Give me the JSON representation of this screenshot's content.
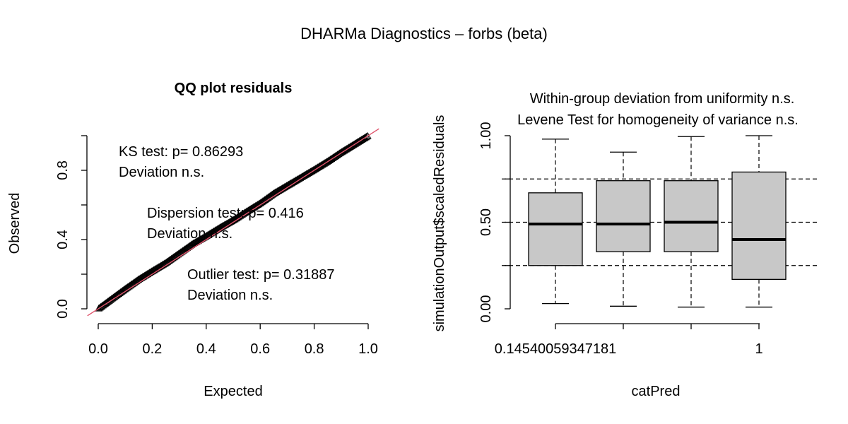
{
  "figure": {
    "title": "DHARMa Diagnostics – forbs (beta)"
  },
  "chart_data": [
    {
      "type": "scatter",
      "title": "QQ plot residuals",
      "xlabel": "Expected",
      "ylabel": "Observed",
      "xlim": [
        -0.04,
        1.04
      ],
      "ylim": [
        -0.04,
        1.04
      ],
      "xticks": [
        "0.0",
        "0.2",
        "0.4",
        "0.6",
        "0.8",
        "1.0"
      ],
      "yticks": [
        "0.0",
        "0.4",
        "0.8"
      ],
      "xtick_values": [
        0,
        0.2,
        0.4,
        0.6,
        0.8,
        1.0
      ],
      "ytick_values": [
        0,
        0.4,
        0.8
      ],
      "grid": false,
      "reference_line": {
        "x": [
          -0.04,
          1.04
        ],
        "y": [
          -0.04,
          1.04
        ],
        "color": "#DF536B"
      },
      "qq_deviation": {
        "x": [
          0,
          0.05,
          0.1,
          0.15,
          0.2,
          0.25,
          0.3,
          0.35,
          0.4,
          0.45,
          0.5,
          0.55,
          0.6,
          0.65,
          0.7,
          0.75,
          0.8,
          0.85,
          0.9,
          0.95,
          1.0
        ],
        "y": [
          0,
          0.008,
          0.015,
          0.02,
          0.018,
          0.015,
          0.02,
          0.025,
          0.02,
          0.018,
          0.012,
          0.012,
          0.01,
          0.016,
          0.012,
          0.008,
          0.004,
          0.002,
          0.004,
          0.002,
          0
        ]
      },
      "n_points": 260,
      "point_marker": "open-triangle",
      "annotations": {
        "ks": {
          "line1": "KS test: p= 0.86293",
          "line2": "Deviation  n.s."
        },
        "dispersion": {
          "line1": "Dispersion test: p= 0.416",
          "line2": "Deviation  n.s."
        },
        "outlier": {
          "line1": "Outlier test: p= 0.31887",
          "line2": "Deviation  n.s."
        }
      }
    },
    {
      "type": "box",
      "title_line1": "Within-group deviation from uniformity n.s.",
      "title_line2": "Levene Test for homogeneity of variance n.s.",
      "xlabel": "catPred",
      "ylabel": "simulationOutput$scaledResiduals",
      "ylim": [
        0,
        1
      ],
      "yticks": [
        "0.00",
        "0.50",
        "1.00"
      ],
      "ytick_values": [
        0,
        0.5,
        1.0
      ],
      "xtick_labels": [
        "0.14540059347181",
        "",
        "",
        "1"
      ],
      "reference_lines": [
        0.25,
        0.5,
        0.75
      ],
      "box_fill": "#C8C8C8",
      "boxes": [
        {
          "whisker_low": 0.03,
          "q1": 0.25,
          "median": 0.49,
          "q3": 0.67,
          "whisker_high": 0.98
        },
        {
          "whisker_low": 0.015,
          "q1": 0.33,
          "median": 0.49,
          "q3": 0.74,
          "whisker_high": 0.905
        },
        {
          "whisker_low": 0.01,
          "q1": 0.33,
          "median": 0.5,
          "q3": 0.74,
          "whisker_high": 0.995
        },
        {
          "whisker_low": 0.01,
          "q1": 0.17,
          "median": 0.4,
          "q3": 0.79,
          "whisker_high": 1.0
        }
      ]
    }
  ]
}
